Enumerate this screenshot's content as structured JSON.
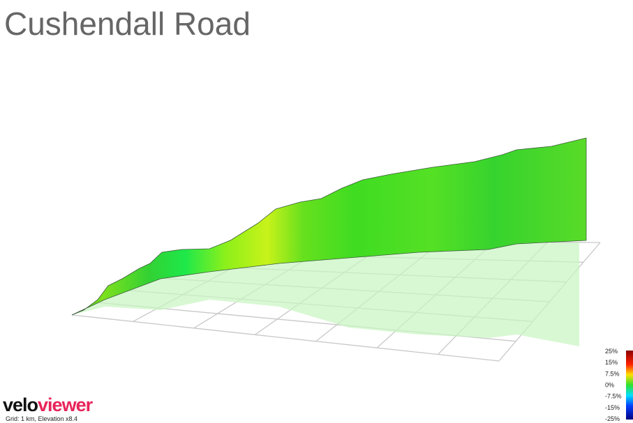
{
  "header": {
    "title": "Cushendall Road"
  },
  "legend": {
    "labels": [
      "25%",
      "15%",
      "7.5%",
      "0%",
      "-7.5%",
      "-15%",
      "-25%"
    ]
  },
  "footer": {
    "logo_left": "velo",
    "logo_right": "viewer",
    "caption": "Grid: 1 km, Elevation x8.4"
  }
}
